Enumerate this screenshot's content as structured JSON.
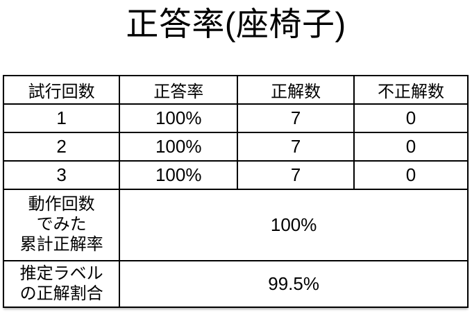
{
  "page": {
    "title": "正答率(座椅子)"
  },
  "colors": {
    "background": "#ffffff",
    "text": "#000000",
    "border": "#000000"
  },
  "table": {
    "headers": {
      "trial": "試行回数",
      "rate": "正答率",
      "correct": "正解数",
      "incorrect": "不正解数"
    },
    "rows": [
      {
        "trial": "1",
        "rate": "100%",
        "correct": "7",
        "incorrect": "0"
      },
      {
        "trial": "2",
        "rate": "100%",
        "correct": "7",
        "incorrect": "0"
      },
      {
        "trial": "3",
        "rate": "100%",
        "correct": "7",
        "incorrect": "0"
      }
    ],
    "summary": [
      {
        "label": "動作回数\nでみた\n累計正解率",
        "value": "100%"
      },
      {
        "label": "推定ラベル\nの正解割合",
        "value": "99.5%"
      }
    ]
  }
}
